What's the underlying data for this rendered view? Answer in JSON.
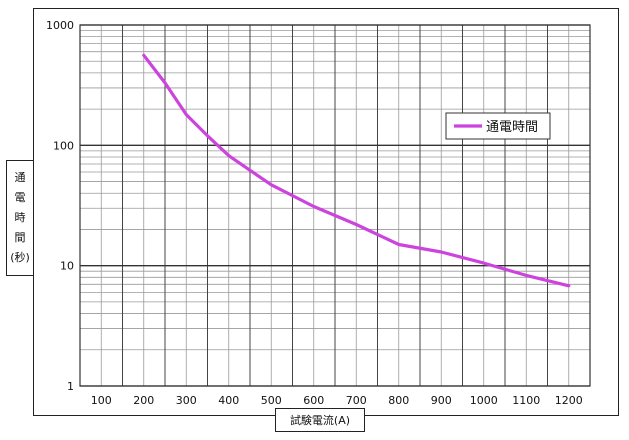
{
  "chart_data": {
    "type": "line",
    "scale_y": "log",
    "ylim": [
      1,
      1000
    ],
    "xlim": [
      50,
      1250
    ],
    "xticks": [
      "100",
      "200",
      "300",
      "400",
      "500",
      "600",
      "700",
      "800",
      "900",
      "1000",
      "1100",
      "1200"
    ],
    "yticks": [
      "1",
      "10",
      "100",
      "1000"
    ],
    "xlabel": "試験電流(A)",
    "ylabel_chars": [
      "通",
      "電",
      "時",
      "間",
      "(秒)"
    ],
    "grid": true,
    "legend_position": "right",
    "series": [
      {
        "name": "通電時間",
        "color": "#cc44dd",
        "x": [
          200,
          250,
          300,
          350,
          400,
          450,
          500,
          600,
          700,
          800,
          900,
          1000,
          1100,
          1200
        ],
        "y": [
          560,
          330,
          180,
          120,
          82,
          62,
          47,
          31,
          22,
          15,
          13,
          10.5,
          8.3,
          6.8
        ]
      }
    ]
  }
}
